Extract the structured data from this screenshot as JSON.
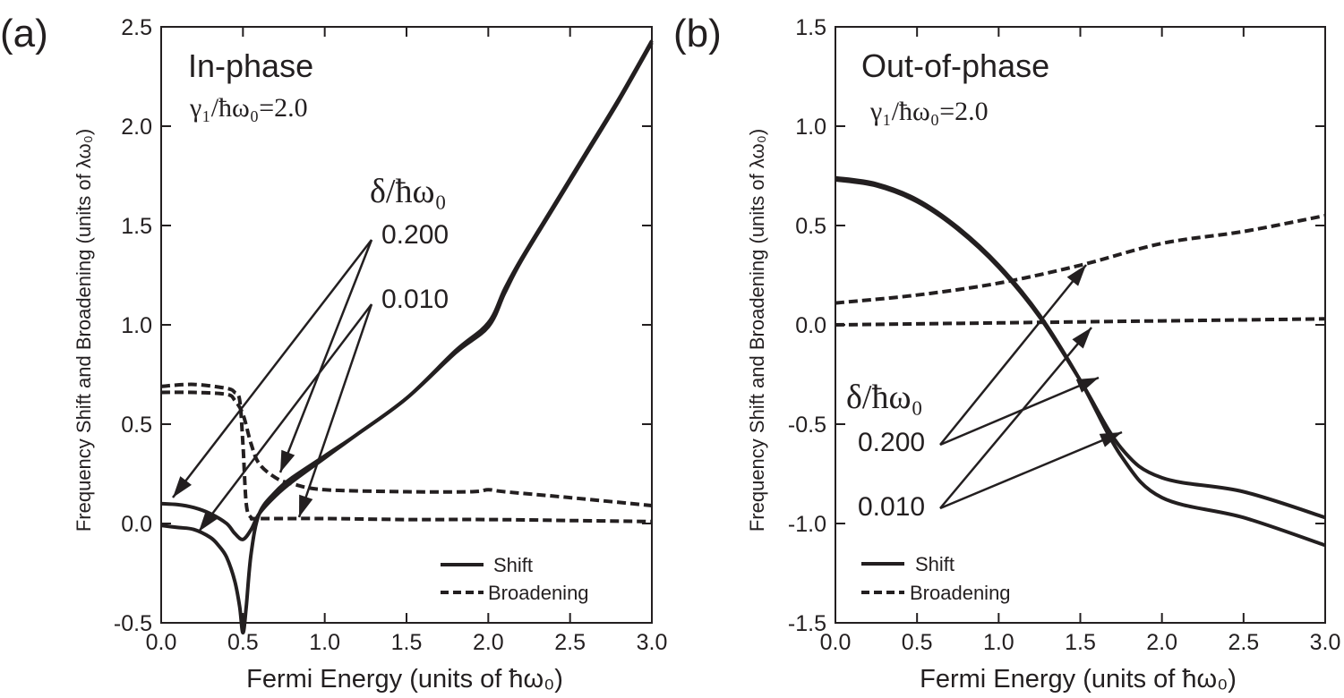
{
  "chart_data": [
    {
      "type": "line",
      "panel_label": "(a)",
      "title": "In-phase",
      "parameter": "γ₁/ħω₀=2.0",
      "xlabel": "Fermi Energy (units of ħω₀)",
      "ylabel": "Frequency Shift and Broadening (units of λω₀)",
      "xlim": [
        0,
        3.0
      ],
      "ylim": [
        -0.5,
        2.5
      ],
      "xticks": [
        "0.0",
        "0.5",
        "1.0",
        "1.5",
        "2.0",
        "2.5",
        "3.0"
      ],
      "yticks": [
        "-0.5",
        "0.0",
        "0.5",
        "1.0",
        "1.5",
        "2.0",
        "2.5"
      ],
      "delta_heading": "δ/ħω₀",
      "delta_values": [
        "0.200",
        "0.010"
      ],
      "legend": {
        "shift": "Shift",
        "broadening": "Broadening"
      },
      "series": [
        {
          "role": "shift",
          "style": "solid",
          "delta": "0.200",
          "x": [
            0,
            0.1,
            0.2,
            0.3,
            0.4,
            0.45,
            0.5,
            0.55,
            0.6,
            0.7,
            0.8,
            1.0,
            1.2,
            1.5,
            1.8,
            2.0,
            2.1,
            2.2,
            2.4,
            2.6,
            2.8,
            3.0
          ],
          "y": [
            0.1,
            0.095,
            0.08,
            0.05,
            0.0,
            -0.05,
            -0.08,
            -0.03,
            0.05,
            0.14,
            0.21,
            0.33,
            0.45,
            0.63,
            0.87,
            1.01,
            1.18,
            1.33,
            1.6,
            1.87,
            2.14,
            2.43
          ]
        },
        {
          "role": "shift",
          "style": "solid",
          "delta": "0.010",
          "x": [
            0,
            0.1,
            0.2,
            0.3,
            0.35,
            0.4,
            0.45,
            0.48,
            0.5,
            0.52,
            0.55,
            0.6,
            0.7,
            0.8,
            1.0,
            1.2,
            1.5,
            1.8,
            2.0,
            2.1,
            2.2,
            2.4,
            2.6,
            2.8,
            3.0
          ],
          "y": [
            -0.01,
            -0.02,
            -0.03,
            -0.07,
            -0.11,
            -0.17,
            -0.29,
            -0.42,
            -0.55,
            -0.42,
            -0.15,
            0.05,
            0.16,
            0.23,
            0.34,
            0.45,
            0.63,
            0.86,
            0.99,
            1.16,
            1.32,
            1.59,
            1.86,
            2.13,
            2.42
          ]
        },
        {
          "role": "broadening",
          "style": "dashed",
          "delta": "0.200",
          "x": [
            0,
            0.2,
            0.4,
            0.45,
            0.5,
            0.55,
            0.6,
            0.7,
            0.8,
            1.0,
            1.5,
            1.9,
            2.0,
            2.1,
            2.5,
            3.0
          ],
          "y": [
            0.66,
            0.66,
            0.65,
            0.62,
            0.55,
            0.4,
            0.3,
            0.23,
            0.2,
            0.17,
            0.16,
            0.16,
            0.17,
            0.16,
            0.13,
            0.09
          ]
        },
        {
          "role": "broadening",
          "style": "dashed",
          "delta": "0.010",
          "x": [
            0,
            0.2,
            0.4,
            0.45,
            0.48,
            0.5,
            0.52,
            0.55,
            0.6,
            1.0,
            1.5,
            2.0,
            2.5,
            3.0
          ],
          "y": [
            0.69,
            0.7,
            0.68,
            0.66,
            0.62,
            0.4,
            0.1,
            0.03,
            0.025,
            0.025,
            0.02,
            0.02,
            0.015,
            0.01
          ]
        }
      ]
    },
    {
      "type": "line",
      "panel_label": "(b)",
      "title": "Out-of-phase",
      "parameter": "γ₁/ħω₀=2.0",
      "xlabel": "Fermi Energy (units of ħω₀)",
      "ylabel": "Frequency Shift and Broadening (units of λω₀)",
      "xlim": [
        0,
        3.0
      ],
      "ylim": [
        -1.5,
        1.5
      ],
      "xticks": [
        "0.0",
        "0.5",
        "1.0",
        "1.5",
        "2.0",
        "2.5",
        "3.0"
      ],
      "yticks": [
        "-1.5",
        "-1.0",
        "-0.5",
        "0.0",
        "0.5",
        "1.0",
        "1.5"
      ],
      "delta_heading": "δ/ħω₀",
      "delta_values": [
        "0.200",
        "0.010"
      ],
      "legend": {
        "shift": "Shift",
        "broadening": "Broadening"
      },
      "series": [
        {
          "role": "shift",
          "style": "solid",
          "delta": "0.200",
          "x": [
            0,
            0.25,
            0.5,
            0.75,
            1.0,
            1.25,
            1.5,
            1.75,
            2.0,
            2.5,
            3.0
          ],
          "y": [
            0.73,
            0.7,
            0.62,
            0.48,
            0.29,
            0.04,
            -0.28,
            -0.62,
            -0.77,
            -0.84,
            -0.97
          ]
        },
        {
          "role": "shift",
          "style": "solid",
          "delta": "0.010",
          "x": [
            0,
            0.25,
            0.5,
            0.75,
            1.0,
            1.25,
            1.5,
            1.75,
            2.0,
            2.5,
            3.0
          ],
          "y": [
            0.74,
            0.71,
            0.63,
            0.49,
            0.3,
            0.05,
            -0.28,
            -0.66,
            -0.87,
            -0.97,
            -1.11
          ]
        },
        {
          "role": "broadening",
          "style": "dashed",
          "delta": "0.200",
          "x": [
            0,
            0.5,
            1.0,
            1.5,
            2.0,
            2.5,
            3.0
          ],
          "y": [
            0.11,
            0.15,
            0.21,
            0.3,
            0.41,
            0.47,
            0.55
          ]
        },
        {
          "role": "broadening",
          "style": "dashed",
          "delta": "0.010",
          "x": [
            0,
            0.5,
            1.0,
            1.5,
            2.0,
            2.5,
            3.0
          ],
          "y": [
            0.0,
            0.005,
            0.01,
            0.015,
            0.02,
            0.025,
            0.03
          ]
        }
      ]
    }
  ]
}
